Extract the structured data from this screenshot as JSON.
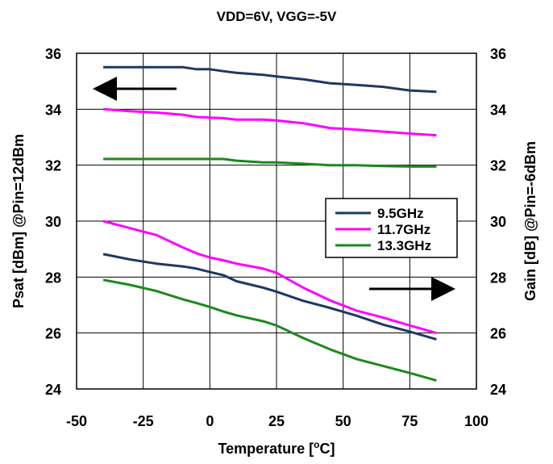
{
  "chart_data": {
    "type": "line",
    "title": "VDD=6V, VGG=-5V",
    "xlabel": "Temperature [°C]",
    "xlabel_parts": {
      "pre": "Temperature [",
      "sup": "o",
      "post": "C]"
    },
    "ylabel_left": "Psat [dBm] @Pin=12dBm",
    "ylabel_right": "Gain [dB] @Pin=-6dBm",
    "xlim": [
      -50,
      100
    ],
    "ylim": [
      24,
      36
    ],
    "xticks": [
      "-50",
      "-25",
      "0",
      "25",
      "50",
      "75",
      "100"
    ],
    "yticks_left": [
      "24",
      "26",
      "28",
      "30",
      "32",
      "34",
      "36"
    ],
    "yticks_right": [
      "24",
      "26",
      "28",
      "30",
      "32",
      "34",
      "36"
    ],
    "grid": true,
    "legend_placement": "center-right",
    "legend": [
      {
        "label": "9.5GHz",
        "color": "#1f3864"
      },
      {
        "label": "11.7GHz",
        "color": "#ff00ff"
      },
      {
        "label": "13.3GHz",
        "color": "#1a8a1a"
      }
    ],
    "annotations": [
      {
        "kind": "arrow",
        "direction": "left",
        "meaning": "Psat curves use left axis"
      },
      {
        "kind": "arrow",
        "direction": "right",
        "meaning": "Gain curves use right axis"
      }
    ],
    "series": [
      {
        "group": "psat",
        "axis": "left",
        "color": "#1f3864",
        "x": [
          -40,
          -30,
          -20,
          -10,
          -5,
          0,
          5,
          10,
          20,
          25,
          35,
          45,
          55,
          65,
          75,
          85
        ],
        "y": [
          35.5,
          35.5,
          35.5,
          35.5,
          35.43,
          35.43,
          35.36,
          35.3,
          35.23,
          35.17,
          35.07,
          34.93,
          34.87,
          34.8,
          34.67,
          34.62
        ]
      },
      {
        "group": "psat",
        "axis": "left",
        "color": "#ff00ff",
        "x": [
          -40,
          -30,
          -20,
          -10,
          -5,
          0,
          5,
          10,
          20,
          25,
          35,
          45,
          55,
          65,
          75,
          85
        ],
        "y": [
          34.0,
          33.93,
          33.88,
          33.8,
          33.72,
          33.7,
          33.68,
          33.63,
          33.63,
          33.6,
          33.5,
          33.33,
          33.27,
          33.2,
          33.13,
          33.07
        ]
      },
      {
        "group": "psat",
        "axis": "left",
        "color": "#1a8a1a",
        "x": [
          -40,
          -30,
          -20,
          -10,
          -5,
          0,
          5,
          10,
          20,
          25,
          35,
          45,
          55,
          65,
          75,
          85
        ],
        "y": [
          32.22,
          32.22,
          32.22,
          32.22,
          32.22,
          32.22,
          32.22,
          32.16,
          32.1,
          32.1,
          32.05,
          32.0,
          32.0,
          31.97,
          31.95,
          31.95
        ]
      },
      {
        "group": "gain",
        "axis": "right",
        "color": "#1f3864",
        "x": [
          -40,
          -30,
          -20,
          -10,
          -5,
          0,
          5,
          10,
          20,
          25,
          35,
          45,
          55,
          65,
          75,
          85
        ],
        "y": [
          28.82,
          28.63,
          28.48,
          28.38,
          28.3,
          28.18,
          28.07,
          27.85,
          27.62,
          27.48,
          27.15,
          26.9,
          26.62,
          26.3,
          26.05,
          25.77
        ]
      },
      {
        "group": "gain",
        "axis": "right",
        "color": "#ff00ff",
        "x": [
          -40,
          -30,
          -20,
          -10,
          -5,
          0,
          5,
          10,
          20,
          25,
          35,
          45,
          55,
          65,
          75,
          85
        ],
        "y": [
          30.0,
          29.75,
          29.5,
          29.05,
          28.85,
          28.7,
          28.6,
          28.48,
          28.3,
          28.15,
          27.62,
          27.17,
          26.8,
          26.55,
          26.27,
          26.0
        ]
      },
      {
        "group": "gain",
        "axis": "right",
        "color": "#1a8a1a",
        "x": [
          -40,
          -30,
          -20,
          -10,
          -5,
          0,
          5,
          10,
          20,
          25,
          35,
          45,
          55,
          65,
          75,
          85
        ],
        "y": [
          27.9,
          27.72,
          27.5,
          27.2,
          27.07,
          26.93,
          26.77,
          26.63,
          26.42,
          26.27,
          25.82,
          25.42,
          25.07,
          24.82,
          24.57,
          24.3
        ]
      }
    ]
  }
}
